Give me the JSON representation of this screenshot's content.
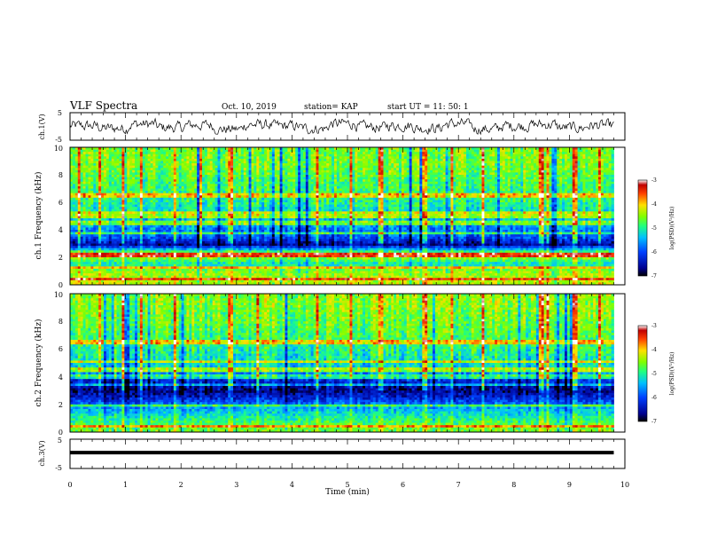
{
  "header": {
    "title": "VLF Spectra",
    "date": "Oct. 10, 2019",
    "station": "station= KAP",
    "start": "start  UT =   11: 50: 1"
  },
  "chart_data": [
    {
      "type": "line",
      "panel": "ch1-waveform",
      "ylabel": "ch.1(V)",
      "ylim": [
        -5,
        5
      ],
      "yticks": [
        "5",
        "-5"
      ],
      "x_range_min": [
        0,
        9.8
      ],
      "note_values": "noisy waveform fluctuating roughly between -2.5 and +2.5 V",
      "sample_values": [
        0.3,
        -1.2,
        1.5,
        -0.8,
        0.9,
        -1.9,
        1.1,
        0.2,
        -1.4,
        1.8,
        -0.6,
        0.7,
        -1.1,
        1.6,
        -1.7,
        0.4,
        1.2,
        -0.9,
        0.6,
        -1.3
      ]
    },
    {
      "type": "heatmap",
      "panel": "ch1-spectrogram",
      "ylabel": "ch.1 Frequency (kHz)",
      "ylim": [
        0,
        10
      ],
      "yticks": [
        "0",
        "2",
        "4",
        "6",
        "8",
        "10"
      ],
      "x_range_min": [
        0,
        9.8
      ],
      "colorbar": {
        "label": "log(PSD)(V²/Hz)",
        "range": [
          -7,
          -3
        ],
        "ticks": [
          "-3",
          "-4",
          "-5",
          "-6",
          "-7"
        ]
      },
      "frequency_profile": [
        {
          "f": 0.3,
          "level": -4.3
        },
        {
          "f": 1.0,
          "level": -4.5
        },
        {
          "f": 1.5,
          "level": -5.2
        },
        {
          "f": 2.2,
          "level": -4.1
        },
        {
          "f": 2.9,
          "level": -6.6
        },
        {
          "f": 3.5,
          "level": -5.9
        },
        {
          "f": 4.5,
          "level": -5.5
        },
        {
          "f": 5.5,
          "level": -5.1
        },
        {
          "f": 6.5,
          "level": -4.9
        },
        {
          "f": 7.5,
          "level": -4.8
        },
        {
          "f": 8.5,
          "level": -4.6
        },
        {
          "f": 9.5,
          "level": -4.6
        }
      ],
      "horizontal_lines_khz": [
        0.4,
        1.25,
        2.1,
        2.3,
        3.8,
        4.5,
        5.0,
        5.2,
        6.5
      ],
      "impulsive_columns_min": [
        0.15,
        0.55,
        0.95,
        1.28,
        1.9,
        2.35,
        2.9,
        3.4,
        4.45,
        5.05,
        5.6,
        6.4,
        6.9,
        7.45,
        8.5,
        8.6,
        9.1,
        9.55
      ]
    },
    {
      "type": "heatmap",
      "panel": "ch2-spectrogram",
      "ylabel": "ch.2 Frequency (kHz)",
      "ylim": [
        0,
        10
      ],
      "yticks": [
        "0",
        "2",
        "4",
        "6",
        "8",
        "10"
      ],
      "x_range_min": [
        0,
        9.8
      ],
      "colorbar": {
        "label": "log(PSD)(V²/Hz)",
        "range": [
          -7,
          -3
        ],
        "ticks": [
          "-3",
          "-4",
          "-5",
          "-6",
          "-7"
        ]
      },
      "frequency_profile": [
        {
          "f": 0.3,
          "level": -4.6
        },
        {
          "f": 1.0,
          "level": -5.0
        },
        {
          "f": 1.6,
          "level": -5.4
        },
        {
          "f": 2.5,
          "level": -6.3
        },
        {
          "f": 3.0,
          "level": -6.7
        },
        {
          "f": 3.8,
          "level": -6.2
        },
        {
          "f": 4.5,
          "level": -5.3
        },
        {
          "f": 5.5,
          "level": -5.1
        },
        {
          "f": 6.5,
          "level": -4.9
        },
        {
          "f": 7.5,
          "level": -4.7
        },
        {
          "f": 8.5,
          "level": -4.6
        },
        {
          "f": 9.5,
          "level": -4.5
        }
      ],
      "horizontal_lines_khz": [
        0.4,
        1.9,
        3.4,
        4.0,
        4.5,
        5.1,
        6.5
      ],
      "impulsive_columns_min": [
        0.15,
        0.55,
        0.95,
        1.28,
        1.9,
        2.35,
        2.9,
        3.4,
        4.45,
        5.05,
        5.6,
        6.4,
        6.9,
        7.45,
        8.5,
        8.6,
        9.1,
        9.55
      ]
    },
    {
      "type": "line",
      "panel": "ch3-waveform",
      "ylabel": "ch.3(V)",
      "ylim": [
        -5,
        5
      ],
      "yticks": [
        "5",
        "-5"
      ],
      "x_range_min": [
        0,
        9.8
      ],
      "constant_value": 0.4
    }
  ],
  "xaxis": {
    "label": "Time  (min)",
    "range": [
      0,
      10
    ],
    "ticks": [
      "0",
      "1",
      "2",
      "3",
      "4",
      "5",
      "6",
      "7",
      "8",
      "9",
      "10"
    ]
  }
}
